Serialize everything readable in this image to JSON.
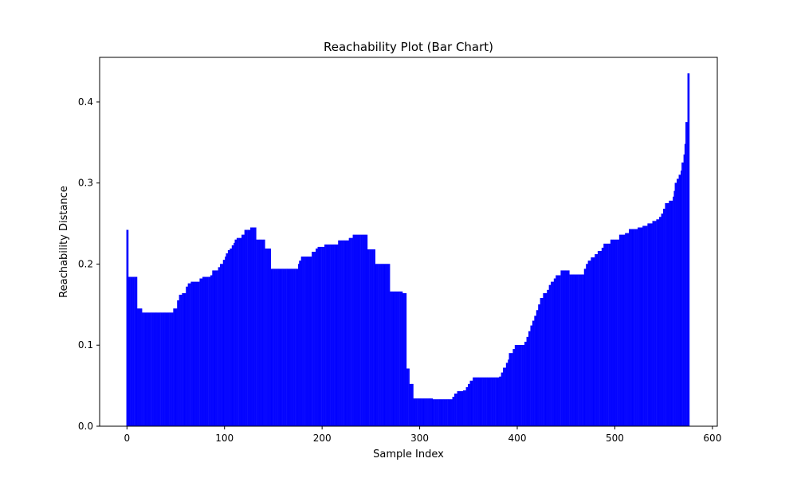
{
  "chart_data": {
    "type": "bar",
    "title": "Reachability Plot (Bar Chart)",
    "xlabel": "Sample Index",
    "ylabel": "Reachability Distance",
    "xlim": [
      -28,
      605
    ],
    "ylim": [
      0,
      0.455
    ],
    "xticks": [
      0,
      100,
      200,
      300,
      400,
      500,
      600
    ],
    "yticks": [
      0.0,
      0.1,
      0.2,
      0.3,
      0.4
    ],
    "ytick_labels": [
      "0.0",
      "0.1",
      "0.2",
      "0.3",
      "0.4"
    ],
    "grid": false,
    "legend": "none",
    "bar_color": "#0000ff",
    "step_points": [
      [
        0,
        0.242
      ],
      [
        2,
        0.184
      ],
      [
        11,
        0.145
      ],
      [
        16,
        0.14
      ],
      [
        48,
        0.145
      ],
      [
        52,
        0.155
      ],
      [
        54,
        0.162
      ],
      [
        57,
        0.164
      ],
      [
        61,
        0.172
      ],
      [
        63,
        0.176
      ],
      [
        66,
        0.178
      ],
      [
        75,
        0.182
      ],
      [
        78,
        0.184
      ],
      [
        86,
        0.186
      ],
      [
        88,
        0.192
      ],
      [
        94,
        0.196
      ],
      [
        96,
        0.2
      ],
      [
        99,
        0.205
      ],
      [
        101,
        0.209
      ],
      [
        102,
        0.213
      ],
      [
        104,
        0.217
      ],
      [
        106,
        0.219
      ],
      [
        108,
        0.223
      ],
      [
        110,
        0.226
      ],
      [
        111,
        0.23
      ],
      [
        113,
        0.232
      ],
      [
        118,
        0.236
      ],
      [
        121,
        0.242
      ],
      [
        127,
        0.245
      ],
      [
        133,
        0.23
      ],
      [
        142,
        0.219
      ],
      [
        148,
        0.194
      ],
      [
        176,
        0.2
      ],
      [
        177,
        0.204
      ],
      [
        179,
        0.209
      ],
      [
        190,
        0.215
      ],
      [
        194,
        0.219
      ],
      [
        196,
        0.221
      ],
      [
        203,
        0.224
      ],
      [
        217,
        0.229
      ],
      [
        228,
        0.232
      ],
      [
        232,
        0.236
      ],
      [
        247,
        0.218
      ],
      [
        255,
        0.2
      ],
      [
        270,
        0.166
      ],
      [
        283,
        0.164
      ],
      [
        287,
        0.071
      ],
      [
        290,
        0.052
      ],
      [
        294,
        0.034
      ],
      [
        314,
        0.033
      ],
      [
        334,
        0.036
      ],
      [
        336,
        0.04
      ],
      [
        339,
        0.043
      ],
      [
        345,
        0.044
      ],
      [
        348,
        0.048
      ],
      [
        350,
        0.052
      ],
      [
        352,
        0.056
      ],
      [
        355,
        0.06
      ],
      [
        382,
        0.061
      ],
      [
        384,
        0.066
      ],
      [
        386,
        0.072
      ],
      [
        389,
        0.078
      ],
      [
        391,
        0.082
      ],
      [
        392,
        0.09
      ],
      [
        396,
        0.095
      ],
      [
        398,
        0.1
      ],
      [
        408,
        0.104
      ],
      [
        410,
        0.11
      ],
      [
        412,
        0.117
      ],
      [
        414,
        0.124
      ],
      [
        416,
        0.13
      ],
      [
        418,
        0.136
      ],
      [
        420,
        0.143
      ],
      [
        422,
        0.15
      ],
      [
        424,
        0.158
      ],
      [
        427,
        0.164
      ],
      [
        431,
        0.168
      ],
      [
        433,
        0.174
      ],
      [
        435,
        0.178
      ],
      [
        438,
        0.182
      ],
      [
        440,
        0.186
      ],
      [
        445,
        0.192
      ],
      [
        454,
        0.187
      ],
      [
        469,
        0.194
      ],
      [
        471,
        0.2
      ],
      [
        473,
        0.204
      ],
      [
        476,
        0.208
      ],
      [
        480,
        0.212
      ],
      [
        483,
        0.216
      ],
      [
        487,
        0.22
      ],
      [
        489,
        0.225
      ],
      [
        496,
        0.23
      ],
      [
        505,
        0.236
      ],
      [
        511,
        0.238
      ],
      [
        515,
        0.243
      ],
      [
        524,
        0.245
      ],
      [
        529,
        0.247
      ],
      [
        534,
        0.25
      ],
      [
        539,
        0.253
      ],
      [
        543,
        0.255
      ],
      [
        546,
        0.258
      ],
      [
        548,
        0.262
      ],
      [
        550,
        0.268
      ],
      [
        552,
        0.275
      ],
      [
        556,
        0.278
      ],
      [
        560,
        0.283
      ],
      [
        561,
        0.29
      ],
      [
        562,
        0.3
      ],
      [
        564,
        0.305
      ],
      [
        566,
        0.31
      ],
      [
        568,
        0.315
      ],
      [
        569,
        0.325
      ],
      [
        571,
        0.335
      ],
      [
        572,
        0.348
      ],
      [
        573,
        0.375
      ],
      [
        575,
        0.435
      ],
      [
        576,
        0.435
      ]
    ]
  }
}
